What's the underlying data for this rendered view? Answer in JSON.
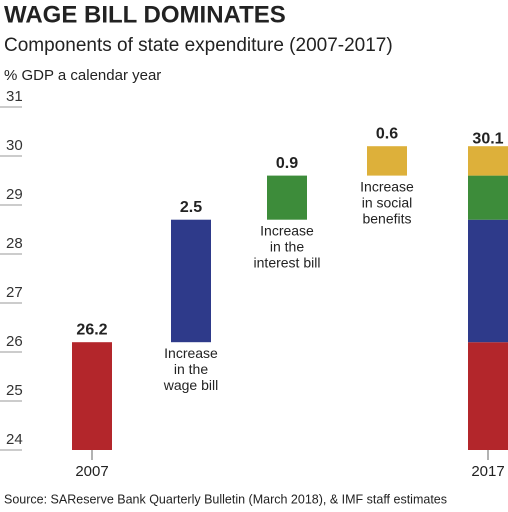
{
  "chart_data": {
    "type": "waterfall",
    "title": "WAGE BILL DOMINATES",
    "subtitle": "Components of state expenditure (2007-2017)",
    "y_label": "% GDP a calendar year",
    "source": "Source: SAReserve Bank Quarterly Bulletin (March 2018), & IMF staff estimates",
    "categories": [
      "2007",
      null,
      null,
      null,
      "2017"
    ],
    "values": [
      26.2,
      2.5,
      0.9,
      0.6,
      30.1
    ],
    "colors": [
      "#b3262b",
      "#2e3a8a",
      "#3d8c3a",
      "#ddb03a"
    ],
    "annotations": [
      null,
      [
        "Increase",
        "in the",
        "wage bill"
      ],
      [
        "Increase",
        "in the",
        "interest bill"
      ],
      [
        "Increase",
        "in social",
        "benefits"
      ],
      null
    ],
    "ylim": [
      24,
      31
    ],
    "yticks": [
      24,
      25,
      26,
      27,
      28,
      29,
      30,
      31
    ]
  }
}
